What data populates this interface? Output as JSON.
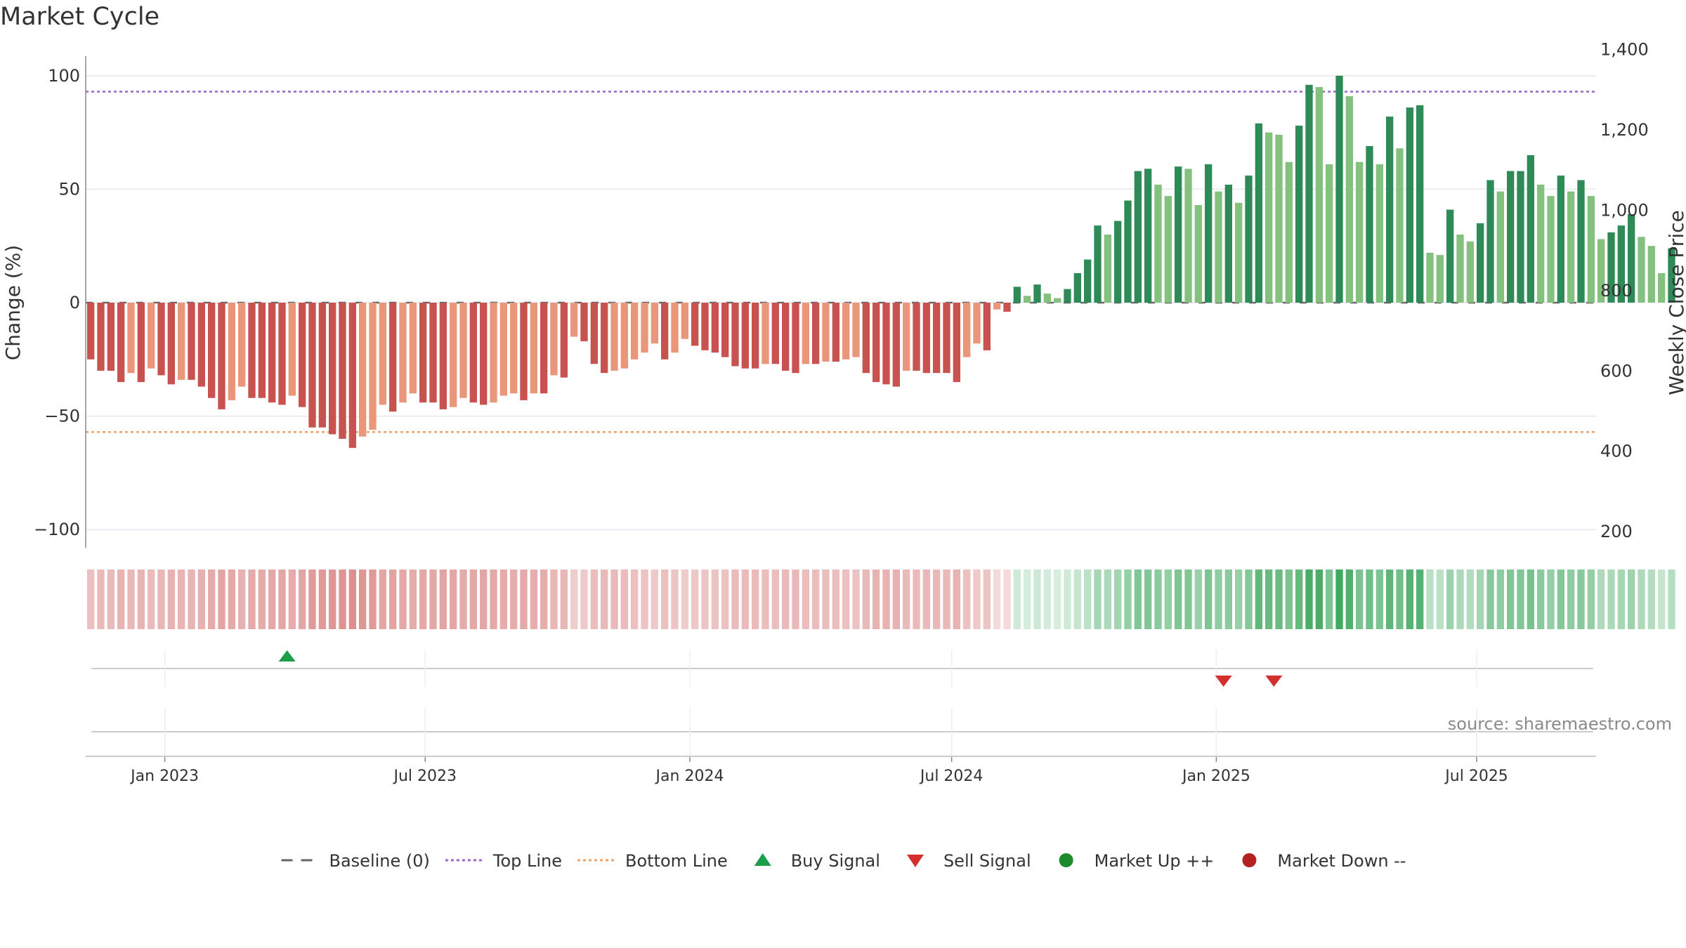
{
  "title": "Market Cycle",
  "source_text": "source: sharemaestro.com",
  "chart_data": {
    "type": "bar",
    "title": "Market Cycle",
    "ylabel": "Change (%)",
    "ylabel_right": "Weekly Close Price",
    "ylim": [
      -108,
      108
    ],
    "yticks": [
      100,
      50,
      0,
      -50,
      -100
    ],
    "ytick_labels": [
      "100",
      "50",
      "0",
      "−50",
      "−100"
    ],
    "y2lim": [
      160,
      1380
    ],
    "y2ticks": [
      1400,
      1200,
      1000,
      800,
      600,
      400,
      200
    ],
    "y2tick_labels": [
      "1,400",
      "1,200",
      "1,000",
      "800",
      "600",
      "400",
      "200"
    ],
    "top_line": 93,
    "bottom_line": -57,
    "x_start": "2022-11-07",
    "x_end": "2025-09-22",
    "xticks": [
      {
        "date": "2023-01-01",
        "label": "Jan 2023"
      },
      {
        "date": "2023-07-01",
        "label": "Jul 2023"
      },
      {
        "date": "2024-01-01",
        "label": "Jan 2024"
      },
      {
        "date": "2024-07-01",
        "label": "Jul 2024"
      },
      {
        "date": "2025-01-01",
        "label": "Jan 2025"
      },
      {
        "date": "2025-07-01",
        "label": "Jul 2025"
      }
    ],
    "first_week": "2022-11-07",
    "values": [
      -25,
      -30,
      -30,
      -35,
      -31,
      -35,
      -29,
      -32,
      -36,
      -34,
      -34,
      -37,
      -42,
      -47,
      -43,
      -37,
      -42,
      -42,
      -44,
      -45,
      -41,
      -46,
      -55,
      -55,
      -58,
      -60,
      -64,
      -59,
      -56,
      -45,
      -48,
      -44,
      -40,
      -44,
      -44,
      -47,
      -46,
      -42,
      -44,
      -45,
      -44,
      -41,
      -40,
      -43,
      -40,
      -40,
      -32,
      -33,
      -15,
      -17,
      -27,
      -31,
      -30,
      -29,
      -25,
      -22,
      -18,
      -25,
      -22,
      -16,
      -19,
      -21,
      -22,
      -24,
      -28,
      -29,
      -29,
      -27,
      -27,
      -30,
      -31,
      -27,
      -27,
      -26,
      -26,
      -25,
      -24,
      -31,
      -35,
      -36,
      -37,
      -30,
      -30,
      -31,
      -31,
      -31,
      -35,
      -24,
      -18,
      -21,
      -3,
      -4,
      7,
      3,
      8,
      4,
      2,
      6,
      13,
      19,
      34,
      30,
      36,
      45,
      58,
      59,
      52,
      47,
      60,
      59,
      43,
      61,
      49,
      52,
      44,
      56,
      79,
      75,
      74,
      62,
      78,
      96,
      95,
      61,
      100,
      91,
      62,
      69,
      61,
      82,
      68,
      86,
      87,
      22,
      21,
      41,
      30,
      27,
      35,
      54,
      49,
      58,
      58,
      65,
      52,
      47,
      56,
      49,
      54,
      47,
      28,
      31,
      34,
      39,
      29,
      25,
      13,
      24
    ],
    "price_values": [],
    "buy_signals": [
      "2023-03-27"
    ],
    "sell_signals": [
      "2025-01-06",
      "2025-02-10"
    ],
    "colors": {
      "neg_dark": "#c85250",
      "neg_light": "#e9967a",
      "pos_dark": "#2e8b57",
      "pos_light": "#84c17e",
      "top_line": "#9966cc",
      "bottom_line": "#f0a060",
      "baseline": "#666666",
      "buy": "#1a9e48",
      "sell": "#d32f2f",
      "market_up": "#1e8a2e",
      "market_down": "#b22222"
    },
    "legend": [
      {
        "label": "Baseline (0)",
        "icon": "dash-line"
      },
      {
        "label": "Top Line",
        "icon": "dot-line-purple"
      },
      {
        "label": "Bottom Line",
        "icon": "dot-line-orange"
      },
      {
        "label": "Buy Signal",
        "icon": "triangle-up"
      },
      {
        "label": "Sell Signal",
        "icon": "triangle-down"
      },
      {
        "label": "Market Up ++",
        "icon": "circle-green"
      },
      {
        "label": "Market Down --",
        "icon": "circle-red"
      }
    ],
    "legend_position": "bottom-center",
    "grid": true
  }
}
